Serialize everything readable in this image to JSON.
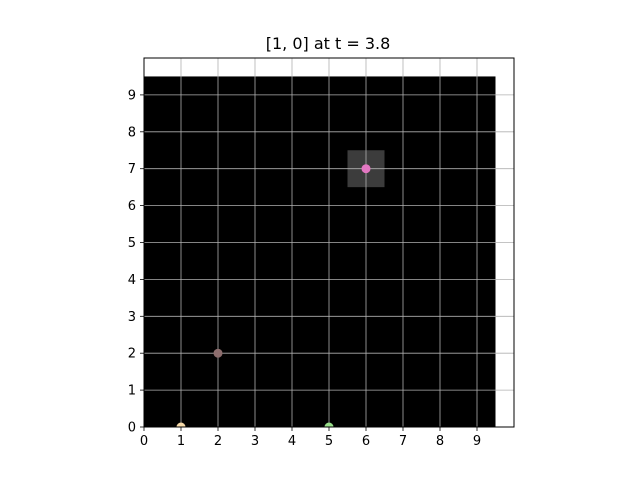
{
  "chart_data": {
    "type": "scatter",
    "title": "[1, 0] at t = 3.8",
    "xlabel": "",
    "ylabel": "",
    "xlim": [
      0,
      10
    ],
    "ylim": [
      0,
      10
    ],
    "x_ticks": [
      "0",
      "1",
      "2",
      "3",
      "4",
      "5",
      "6",
      "7",
      "8",
      "9"
    ],
    "y_ticks": [
      "0",
      "1",
      "2",
      "3",
      "4",
      "5",
      "6",
      "7",
      "8",
      "9"
    ],
    "grid": true,
    "background_region": {
      "x": [
        0,
        9.5
      ],
      "y": [
        0,
        9.5
      ],
      "color": "#000000"
    },
    "highlight_cell": {
      "x": [
        5.5,
        6.5
      ],
      "y": [
        6.5,
        7.5
      ],
      "color": "#3c3c3c"
    },
    "points": [
      {
        "x": 6,
        "y": 7,
        "color": "#e377c2"
      },
      {
        "x": 2,
        "y": 2,
        "color": "#8c6d6d"
      },
      {
        "x": 1,
        "y": 0,
        "color": "#f5d9a8"
      },
      {
        "x": 5,
        "y": 0,
        "color": "#98df8a"
      }
    ]
  }
}
